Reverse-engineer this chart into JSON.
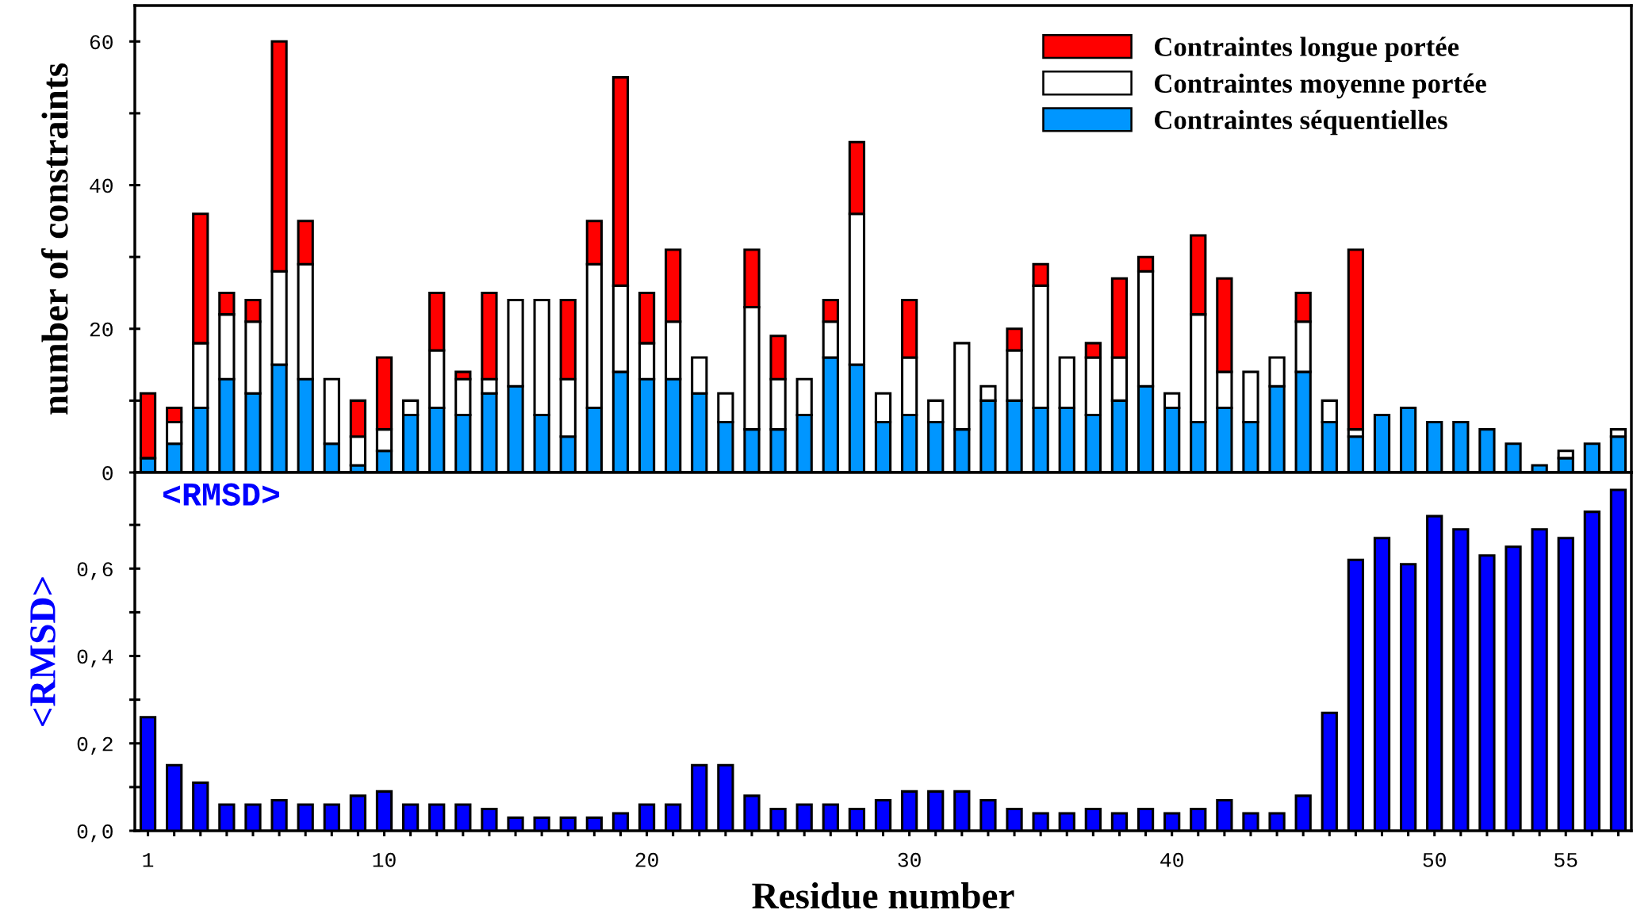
{
  "chart_data": [
    {
      "type": "bar",
      "stacked": true,
      "ylabel": "number of constraints",
      "legend": "top right",
      "tick_labels": "y",
      "x": [
        1,
        2,
        3,
        4,
        5,
        6,
        7,
        8,
        9,
        10,
        11,
        12,
        13,
        14,
        15,
        16,
        17,
        18,
        19,
        20,
        21,
        22,
        23,
        24,
        25,
        26,
        27,
        28,
        29,
        30,
        31,
        32,
        33,
        34,
        35,
        36,
        37,
        38,
        39,
        40,
        41,
        42,
        43,
        44,
        45,
        46,
        47,
        48,
        49,
        50,
        51,
        52,
        53,
        54,
        55,
        56,
        57
      ],
      "xlim": [
        0.5,
        57.5
      ],
      "xticks": [
        1,
        {
          "value": 2,
          "label": null
        },
        {
          "value": 3,
          "label": null
        },
        {
          "value": 4,
          "label": null
        },
        {
          "value": 5,
          "label": null
        },
        {
          "value": 6,
          "label": null
        },
        {
          "value": 7,
          "label": null
        },
        {
          "value": 8,
          "label": null
        },
        {
          "value": 9,
          "label": null
        },
        10,
        {
          "value": 11,
          "label": null
        },
        {
          "value": 12,
          "label": null
        },
        {
          "value": 13,
          "label": null
        },
        {
          "value": 14,
          "label": null
        },
        {
          "value": 15,
          "label": null
        },
        {
          "value": 16,
          "label": null
        },
        {
          "value": 17,
          "label": null
        },
        {
          "value": 18,
          "label": null
        },
        {
          "value": 19,
          "label": null
        },
        20,
        {
          "value": 21,
          "label": null
        },
        {
          "value": 22,
          "label": null
        },
        {
          "value": 23,
          "label": null
        },
        {
          "value": 24,
          "label": null
        },
        {
          "value": 25,
          "label": null
        },
        {
          "value": 26,
          "label": null
        },
        {
          "value": 27,
          "label": null
        },
        {
          "value": 28,
          "label": null
        },
        {
          "value": 29,
          "label": null
        },
        30,
        {
          "value": 31,
          "label": null
        },
        {
          "value": 32,
          "label": null
        },
        {
          "value": 33,
          "label": null
        },
        {
          "value": 34,
          "label": null
        },
        {
          "value": 35,
          "label": null
        },
        {
          "value": 36,
          "label": null
        },
        {
          "value": 37,
          "label": null
        },
        {
          "value": 38,
          "label": null
        },
        {
          "value": 39,
          "label": null
        },
        40,
        {
          "value": 41,
          "label": null
        },
        {
          "value": 42,
          "label": null
        },
        {
          "value": 43,
          "label": null
        },
        {
          "value": 44,
          "label": null
        },
        {
          "value": 45,
          "label": null
        },
        {
          "value": 46,
          "label": null
        },
        {
          "value": 47,
          "label": null
        },
        {
          "value": 48,
          "label": null
        },
        {
          "value": 49,
          "label": null
        },
        50,
        {
          "value": 51,
          "label": null
        },
        {
          "value": 52,
          "label": null
        },
        {
          "value": 53,
          "label": null
        },
        {
          "value": 54,
          "label": null
        },
        55,
        {
          "value": 56,
          "label": null
        },
        {
          "value": 57,
          "label": null
        }
      ],
      "ylim": [
        0,
        65
      ],
      "yticks": [
        0,
        {
          "value": 10,
          "label": null
        },
        20,
        {
          "value": 30,
          "label": null
        },
        40,
        {
          "value": 50,
          "label": null
        },
        60
      ],
      "series": [
        {
          "name": "Contraintes séquentielles",
          "color": "#0096ff",
          "values": [
            2,
            4,
            9,
            13,
            11,
            15,
            13,
            4,
            1,
            3,
            8,
            9,
            8,
            11,
            12,
            8,
            5,
            9,
            14,
            13,
            13,
            11,
            7,
            6,
            6,
            8,
            16,
            15,
            7,
            8,
            7,
            6,
            10,
            10,
            9,
            9,
            8,
            10,
            12,
            9,
            7,
            9,
            7,
            12,
            14,
            7,
            5,
            8,
            9,
            7,
            7,
            6,
            4,
            1,
            2,
            4,
            5
          ]
        },
        {
          "name": "Contraintes moyenne portée",
          "color": "#ffffff",
          "values": [
            null,
            3,
            9,
            9,
            10,
            13,
            16,
            9,
            4,
            3,
            2,
            8,
            5,
            2,
            12,
            16,
            8,
            20,
            12,
            5,
            8,
            5,
            4,
            17,
            7,
            5,
            5,
            21,
            4,
            8,
            3,
            12,
            2,
            7,
            17,
            7,
            8,
            6,
            16,
            2,
            15,
            5,
            7,
            4,
            7,
            3,
            1,
            null,
            null,
            null,
            null,
            null,
            null,
            null,
            1,
            null,
            1
          ]
        },
        {
          "name": "Contraintes longue portée",
          "color": "#ff0000",
          "values": [
            9,
            2,
            18,
            3,
            3,
            32,
            6,
            null,
            5,
            10,
            null,
            8,
            1,
            12,
            null,
            null,
            11,
            6,
            29,
            7,
            10,
            null,
            null,
            8,
            6,
            null,
            3,
            10,
            null,
            8,
            null,
            null,
            null,
            3,
            3,
            null,
            2,
            11,
            2,
            null,
            11,
            13,
            null,
            null,
            4,
            null,
            25,
            null,
            null,
            null,
            null,
            null,
            null,
            null,
            null,
            null,
            null
          ]
        }
      ]
    },
    {
      "type": "bar",
      "ylabel": "<RMSD>",
      "xlabel": "Residue number",
      "color": "#0000ff",
      "annotations": [
        "<RMSD>"
      ],
      "x": [
        1,
        2,
        3,
        4,
        5,
        6,
        7,
        8,
        9,
        10,
        11,
        12,
        13,
        14,
        15,
        16,
        17,
        18,
        19,
        20,
        21,
        22,
        23,
        24,
        25,
        26,
        27,
        28,
        29,
        30,
        31,
        32,
        33,
        34,
        35,
        36,
        37,
        38,
        39,
        40,
        41,
        42,
        43,
        44,
        45,
        46,
        47,
        48,
        49,
        50,
        51,
        52,
        53,
        54,
        55,
        56,
        57
      ],
      "values": [
        0.26,
        0.15,
        0.11,
        0.06,
        0.06,
        0.07,
        0.06,
        0.06,
        0.08,
        0.09,
        0.06,
        0.06,
        0.06,
        0.05,
        0.03,
        0.03,
        0.03,
        0.03,
        0.04,
        0.06,
        0.06,
        0.15,
        0.15,
        0.08,
        0.05,
        0.06,
        0.06,
        0.05,
        0.07,
        0.09,
        0.09,
        0.09,
        0.07,
        0.05,
        0.04,
        0.04,
        0.05,
        0.04,
        0.05,
        0.04,
        0.05,
        0.07,
        0.04,
        0.04,
        0.08,
        0.27,
        0.62,
        0.67,
        0.61,
        0.72,
        0.69,
        0.63,
        0.65,
        0.69,
        0.67,
        0.73,
        0.78
      ],
      "xlim": [
        0.5,
        57.5
      ],
      "xticks": [
        1,
        {
          "value": 2,
          "label": null
        },
        {
          "value": 3,
          "label": null
        },
        {
          "value": 4,
          "label": null
        },
        {
          "value": 5,
          "label": null
        },
        {
          "value": 6,
          "label": null
        },
        {
          "value": 7,
          "label": null
        },
        {
          "value": 8,
          "label": null
        },
        {
          "value": 9,
          "label": null
        },
        10,
        {
          "value": 11,
          "label": null
        },
        {
          "value": 12,
          "label": null
        },
        {
          "value": 13,
          "label": null
        },
        {
          "value": 14,
          "label": null
        },
        {
          "value": 15,
          "label": null
        },
        {
          "value": 16,
          "label": null
        },
        {
          "value": 17,
          "label": null
        },
        {
          "value": 18,
          "label": null
        },
        {
          "value": 19,
          "label": null
        },
        20,
        {
          "value": 21,
          "label": null
        },
        {
          "value": 22,
          "label": null
        },
        {
          "value": 23,
          "label": null
        },
        {
          "value": 24,
          "label": null
        },
        {
          "value": 25,
          "label": null
        },
        {
          "value": 26,
          "label": null
        },
        {
          "value": 27,
          "label": null
        },
        {
          "value": 28,
          "label": null
        },
        {
          "value": 29,
          "label": null
        },
        30,
        {
          "value": 31,
          "label": null
        },
        {
          "value": 32,
          "label": null
        },
        {
          "value": 33,
          "label": null
        },
        {
          "value": 34,
          "label": null
        },
        {
          "value": 35,
          "label": null
        },
        {
          "value": 36,
          "label": null
        },
        {
          "value": 37,
          "label": null
        },
        {
          "value": 38,
          "label": null
        },
        {
          "value": 39,
          "label": null
        },
        40,
        {
          "value": 41,
          "label": null
        },
        {
          "value": 42,
          "label": null
        },
        {
          "value": 43,
          "label": null
        },
        {
          "value": 44,
          "label": null
        },
        {
          "value": 45,
          "label": null
        },
        {
          "value": 46,
          "label": null
        },
        {
          "value": 47,
          "label": null
        },
        {
          "value": 48,
          "label": null
        },
        {
          "value": 49,
          "label": null
        },
        50,
        {
          "value": 51,
          "label": null
        },
        {
          "value": 52,
          "label": null
        },
        {
          "value": 53,
          "label": null
        },
        {
          "value": 54,
          "label": null
        },
        55,
        {
          "value": 56,
          "label": null
        },
        {
          "value": 57,
          "label": null
        }
      ],
      "ylim": [
        0,
        0.82
      ],
      "yticks": [
        {
          "value": 0,
          "label": "0,0"
        },
        {
          "value": 0.1,
          "label": null
        },
        {
          "value": 0.2,
          "label": "0,2"
        },
        {
          "value": 0.3,
          "label": null
        },
        {
          "value": 0.4,
          "label": "0,4"
        },
        {
          "value": 0.5,
          "label": null
        },
        {
          "value": 0.6,
          "label": "0,6"
        },
        {
          "value": 0.7,
          "label": null
        }
      ]
    }
  ]
}
